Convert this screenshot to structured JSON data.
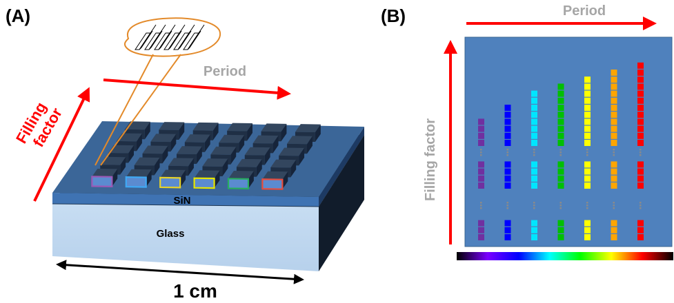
{
  "panel_a": {
    "label": "(A)",
    "period_label": "Period",
    "filling_label_line1": "Filling",
    "filling_label_line2": "factor",
    "sin_label": "SiN",
    "glass_label": "Glass",
    "scale_label": "1 cm",
    "highlight_colors": [
      "#9b59b6",
      "#3fa9f5",
      "#e6d22a",
      "#e6e600",
      "#27ae60",
      "#e74c3c"
    ]
  },
  "panel_b": {
    "label": "(B)",
    "period_label": "Period",
    "filling_label": "Filling factor",
    "columns": [
      {
        "color": "#7030a0",
        "top_squares": 4
      },
      {
        "color": "#0000ff",
        "top_squares": 6
      },
      {
        "color": "#00e5ff",
        "top_squares": 8
      },
      {
        "color": "#00c000",
        "top_squares": 9
      },
      {
        "color": "#ffff00",
        "top_squares": 10
      },
      {
        "color": "#ffa500",
        "top_squares": 11
      },
      {
        "color": "#ff0000",
        "top_squares": 12
      }
    ],
    "spectrum_colors": [
      "#000000",
      "#7a00ff",
      "#0000ff",
      "#00ffff",
      "#00ff00",
      "#ffff00",
      "#ff0000",
      "#000000"
    ]
  }
}
